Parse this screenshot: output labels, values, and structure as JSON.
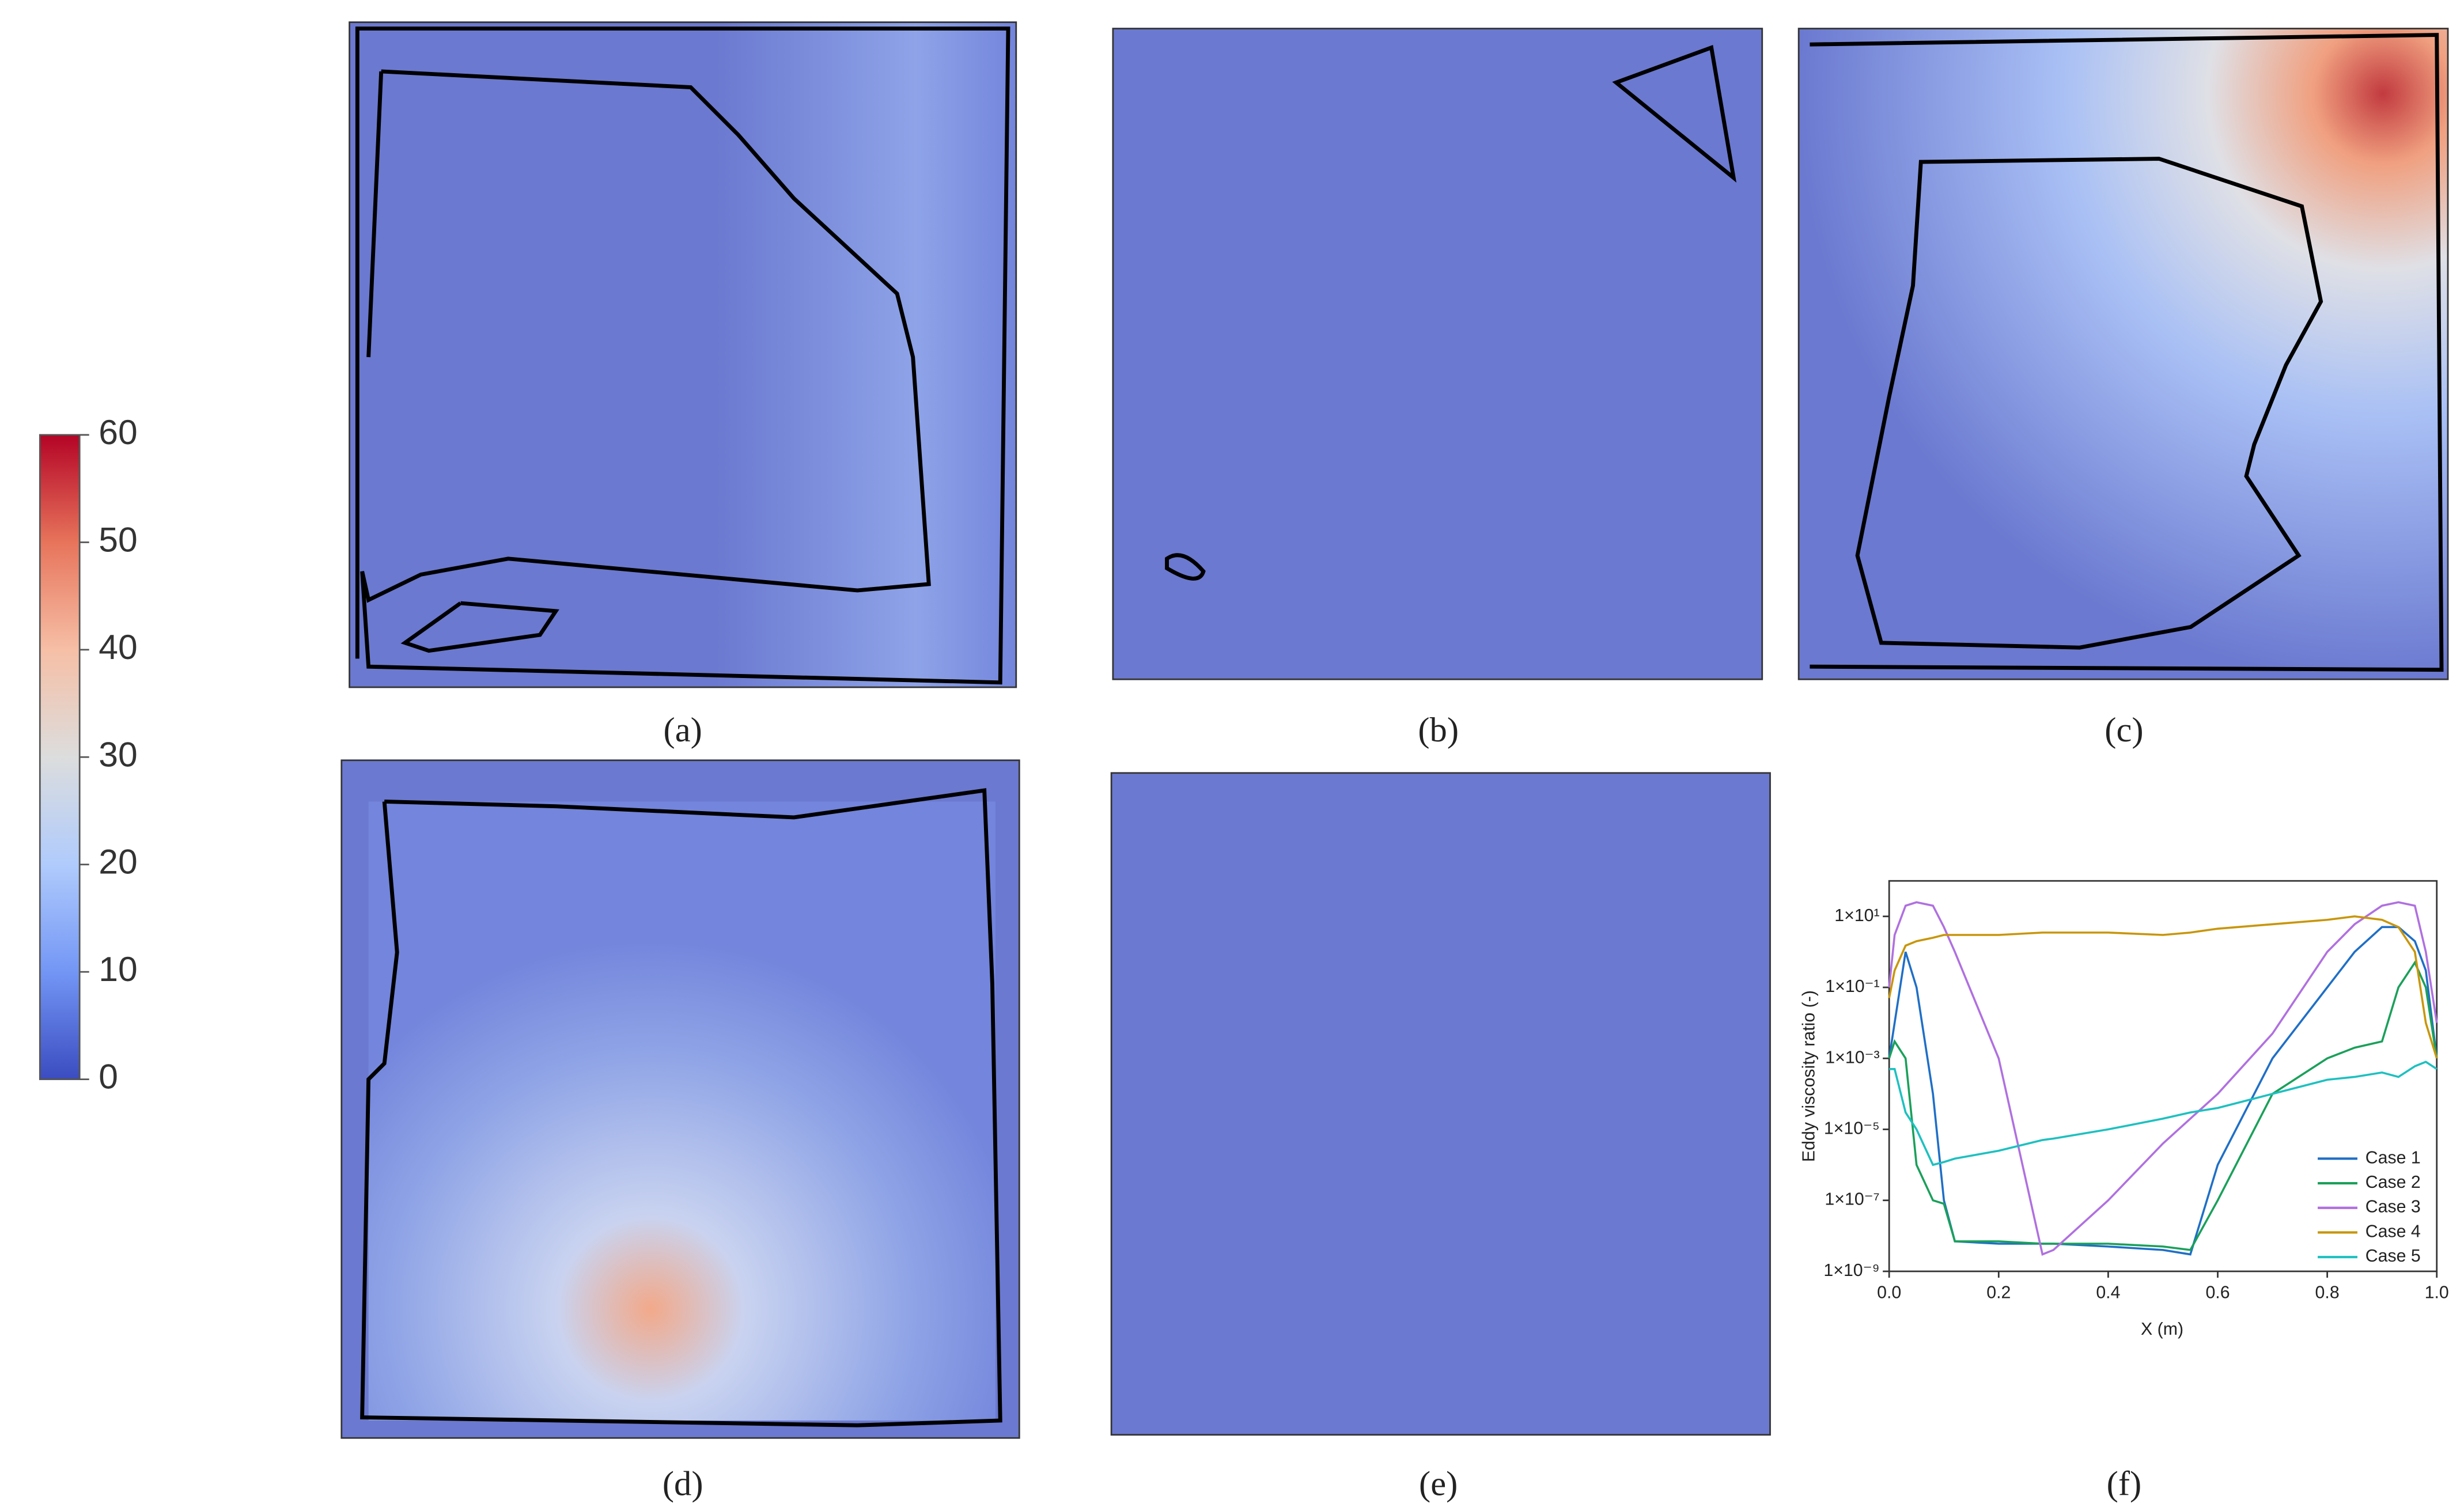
{
  "figure": {
    "panel_labels": [
      "(a)",
      "(b)",
      "(c)",
      "(d)",
      "(e)",
      "(f)"
    ]
  },
  "chart_data": [
    {
      "type": "colorbar",
      "ylim": [
        0,
        60
      ],
      "yticks": [
        0,
        10,
        20,
        30,
        40,
        50,
        60
      ],
      "colormap": [
        "#3b4cc0",
        "#7396f5",
        "#b0cbfc",
        "#dcdddd",
        "#f6bfa6",
        "#e7745b",
        "#b40426"
      ]
    },
    {
      "type": "line",
      "xlabel": "X (m)",
      "ylabel": "Eddy viscosity ratio (-)",
      "log_y": true,
      "legend": "lower right",
      "xlim": [
        0,
        1
      ],
      "ylim": [
        1e-09,
        100
      ],
      "xticks": [
        {
          "value": 0,
          "label": "0.0"
        },
        0.2,
        0.4,
        0.6,
        0.8,
        {
          "value": 1,
          "label": "1.0"
        }
      ],
      "yticks": [
        {
          "value": 10,
          "label": "1×10¹"
        },
        {
          "value": 0.1,
          "label": "1×10⁻¹"
        },
        {
          "value": 0.001,
          "label": "1×10⁻³"
        },
        {
          "value": 1e-05,
          "label": "1×10⁻⁵"
        },
        {
          "value": 1e-07,
          "label": "1×10⁻⁷"
        },
        {
          "value": 1e-09,
          "label": "1×10⁻⁹"
        }
      ],
      "x": [
        0,
        0.01,
        0.03,
        0.05,
        0.08,
        0.1,
        0.12,
        0.2,
        0.28,
        0.3,
        0.4,
        0.5,
        0.55,
        0.6,
        0.7,
        0.8,
        0.85,
        0.9,
        0.93,
        0.96,
        0.98,
        1.0
      ],
      "series": [
        {
          "name": "Case 1",
          "color": "#1f6fc6",
          "values": [
            0.001,
            0.01,
            1,
            0.1,
            0.0001,
            1e-07,
            7e-09,
            6e-09,
            6e-09,
            6e-09,
            5e-09,
            4e-09,
            3e-09,
            1e-06,
            0.001,
            0.1,
            1,
            5,
            5,
            2,
            0.3,
            0.001
          ]
        },
        {
          "name": "Case 2",
          "color": "#1aa05a",
          "values": [
            0.001,
            0.003,
            0.001,
            1e-06,
            1e-07,
            8e-08,
            7e-09,
            7e-09,
            6e-09,
            6e-09,
            6e-09,
            5e-09,
            4e-09,
            1e-07,
            0.0001,
            0.001,
            0.002,
            0.003,
            0.1,
            0.5,
            0.1,
            0.001
          ]
        },
        {
          "name": "Case 3",
          "color": "#b070e0",
          "values": [
            0.1,
            3,
            20,
            25,
            20,
            5,
            1,
            0.001,
            3e-09,
            4e-09,
            1e-07,
            4e-06,
            2e-05,
            0.0001,
            0.005,
            1,
            6,
            20,
            25,
            20,
            1,
            0.01
          ]
        },
        {
          "name": "Case 4",
          "color": "#c8960a",
          "values": [
            0.05,
            0.3,
            1.5,
            2,
            2.5,
            3,
            3,
            3,
            3.5,
            3.5,
            3.5,
            3,
            3.5,
            4.5,
            6,
            8,
            10,
            8,
            5,
            1,
            0.01,
            0.001
          ]
        },
        {
          "name": "Case 5",
          "color": "#1ec0c0",
          "values": [
            0.0005,
            0.0005,
            3e-05,
            1e-05,
            1e-06,
            1.2e-06,
            1.5e-06,
            2.5e-06,
            5e-06,
            5.5e-06,
            1e-05,
            2e-05,
            3e-05,
            4e-05,
            0.0001,
            0.00025,
            0.0003,
            0.0004,
            0.0003,
            0.0006,
            0.0008,
            0.0005
          ]
        }
      ]
    }
  ]
}
